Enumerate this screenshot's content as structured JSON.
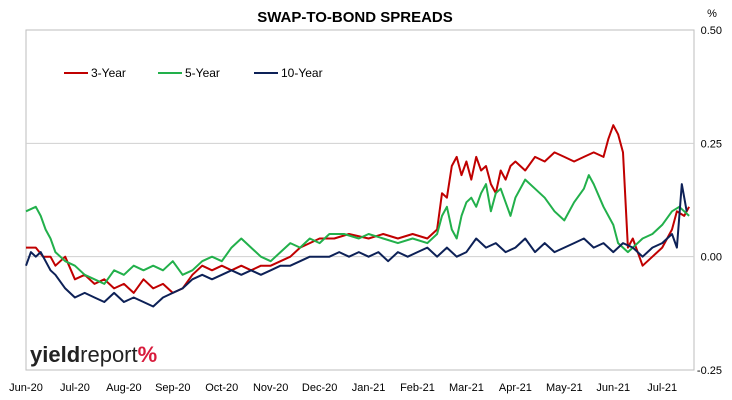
{
  "chart_data": {
    "type": "line",
    "title": "SWAP-TO-BOND SPREADS",
    "y_unit_label": "%",
    "ylim": [
      -0.25,
      0.5
    ],
    "y_ticks": [
      {
        "value": 0.5,
        "label": "0.50"
      },
      {
        "value": 0.25,
        "label": "0.25"
      },
      {
        "value": 0.0,
        "label": "0.00"
      },
      {
        "value": -0.25,
        "label": "-0.25"
      }
    ],
    "x_tick_labels": [
      "Jun-20",
      "Jul-20",
      "Aug-20",
      "Sep-20",
      "Oct-20",
      "Nov-20",
      "Dec-20",
      "Jan-21",
      "Feb-21",
      "Mar-21",
      "Apr-21",
      "May-21",
      "Jun-21",
      "Jul-21"
    ],
    "xlim": [
      0,
      13.65
    ],
    "grid": "horizontal",
    "legend_position": "top-left",
    "colors": {
      "3-Year": "#c00000",
      "5-Year": "#22b04b",
      "10-Year": "#0d2157"
    },
    "series": [
      {
        "name": "3-Year",
        "color": "#c00000",
        "points": [
          [
            0,
            0.02
          ],
          [
            0.2,
            0.02
          ],
          [
            0.35,
            0.0
          ],
          [
            0.5,
            0.0
          ],
          [
            0.6,
            -0.02
          ],
          [
            0.8,
            0.0
          ],
          [
            1.0,
            -0.05
          ],
          [
            1.2,
            -0.04
          ],
          [
            1.4,
            -0.06
          ],
          [
            1.6,
            -0.05
          ],
          [
            1.8,
            -0.07
          ],
          [
            2.0,
            -0.06
          ],
          [
            2.2,
            -0.08
          ],
          [
            2.4,
            -0.05
          ],
          [
            2.6,
            -0.07
          ],
          [
            2.8,
            -0.06
          ],
          [
            3.0,
            -0.08
          ],
          [
            3.2,
            -0.07
          ],
          [
            3.4,
            -0.04
          ],
          [
            3.6,
            -0.02
          ],
          [
            3.8,
            -0.03
          ],
          [
            4.0,
            -0.02
          ],
          [
            4.2,
            -0.03
          ],
          [
            4.4,
            -0.02
          ],
          [
            4.6,
            -0.03
          ],
          [
            4.8,
            -0.02
          ],
          [
            5.0,
            -0.02
          ],
          [
            5.2,
            -0.01
          ],
          [
            5.4,
            0.0
          ],
          [
            5.6,
            0.02
          ],
          [
            5.8,
            0.03
          ],
          [
            6.0,
            0.04
          ],
          [
            6.3,
            0.04
          ],
          [
            6.6,
            0.05
          ],
          [
            7.0,
            0.04
          ],
          [
            7.3,
            0.05
          ],
          [
            7.6,
            0.04
          ],
          [
            7.9,
            0.05
          ],
          [
            8.2,
            0.04
          ],
          [
            8.4,
            0.06
          ],
          [
            8.5,
            0.14
          ],
          [
            8.6,
            0.13
          ],
          [
            8.7,
            0.2
          ],
          [
            8.8,
            0.22
          ],
          [
            8.9,
            0.18
          ],
          [
            9.0,
            0.21
          ],
          [
            9.1,
            0.17
          ],
          [
            9.2,
            0.22
          ],
          [
            9.3,
            0.19
          ],
          [
            9.4,
            0.2
          ],
          [
            9.5,
            0.16
          ],
          [
            9.6,
            0.14
          ],
          [
            9.7,
            0.19
          ],
          [
            9.8,
            0.17
          ],
          [
            9.9,
            0.2
          ],
          [
            10.0,
            0.21
          ],
          [
            10.2,
            0.19
          ],
          [
            10.4,
            0.22
          ],
          [
            10.6,
            0.21
          ],
          [
            10.8,
            0.23
          ],
          [
            11.0,
            0.22
          ],
          [
            11.2,
            0.21
          ],
          [
            11.4,
            0.22
          ],
          [
            11.6,
            0.23
          ],
          [
            11.8,
            0.22
          ],
          [
            11.9,
            0.26
          ],
          [
            12.0,
            0.29
          ],
          [
            12.1,
            0.27
          ],
          [
            12.2,
            0.23
          ],
          [
            12.3,
            0.02
          ],
          [
            12.4,
            0.04
          ],
          [
            12.6,
            -0.02
          ],
          [
            12.8,
            0.0
          ],
          [
            13.0,
            0.02
          ],
          [
            13.2,
            0.06
          ],
          [
            13.3,
            0.1
          ],
          [
            13.45,
            0.09
          ],
          [
            13.55,
            0.11
          ]
        ]
      },
      {
        "name": "5-Year",
        "color": "#22b04b",
        "points": [
          [
            0,
            0.1
          ],
          [
            0.2,
            0.11
          ],
          [
            0.3,
            0.09
          ],
          [
            0.4,
            0.06
          ],
          [
            0.5,
            0.04
          ],
          [
            0.6,
            0.01
          ],
          [
            0.8,
            -0.01
          ],
          [
            1.0,
            -0.02
          ],
          [
            1.2,
            -0.04
          ],
          [
            1.4,
            -0.05
          ],
          [
            1.6,
            -0.06
          ],
          [
            1.8,
            -0.03
          ],
          [
            2.0,
            -0.04
          ],
          [
            2.2,
            -0.02
          ],
          [
            2.4,
            -0.03
          ],
          [
            2.6,
            -0.02
          ],
          [
            2.8,
            -0.03
          ],
          [
            3.0,
            -0.01
          ],
          [
            3.2,
            -0.04
          ],
          [
            3.4,
            -0.03
          ],
          [
            3.6,
            -0.01
          ],
          [
            3.8,
            0.0
          ],
          [
            4.0,
            -0.01
          ],
          [
            4.2,
            0.02
          ],
          [
            4.4,
            0.04
          ],
          [
            4.6,
            0.02
          ],
          [
            4.8,
            0.0
          ],
          [
            5.0,
            -0.01
          ],
          [
            5.2,
            0.01
          ],
          [
            5.4,
            0.03
          ],
          [
            5.6,
            0.02
          ],
          [
            5.8,
            0.04
          ],
          [
            6.0,
            0.03
          ],
          [
            6.2,
            0.05
          ],
          [
            6.5,
            0.05
          ],
          [
            6.8,
            0.04
          ],
          [
            7.0,
            0.05
          ],
          [
            7.3,
            0.04
          ],
          [
            7.6,
            0.03
          ],
          [
            7.9,
            0.04
          ],
          [
            8.2,
            0.03
          ],
          [
            8.4,
            0.05
          ],
          [
            8.5,
            0.09
          ],
          [
            8.6,
            0.11
          ],
          [
            8.7,
            0.06
          ],
          [
            8.8,
            0.04
          ],
          [
            8.9,
            0.09
          ],
          [
            9.0,
            0.12
          ],
          [
            9.1,
            0.13
          ],
          [
            9.2,
            0.11
          ],
          [
            9.3,
            0.14
          ],
          [
            9.4,
            0.16
          ],
          [
            9.5,
            0.1
          ],
          [
            9.6,
            0.14
          ],
          [
            9.7,
            0.15
          ],
          [
            9.8,
            0.12
          ],
          [
            9.9,
            0.09
          ],
          [
            10.0,
            0.13
          ],
          [
            10.2,
            0.17
          ],
          [
            10.4,
            0.15
          ],
          [
            10.6,
            0.13
          ],
          [
            10.8,
            0.1
          ],
          [
            11.0,
            0.08
          ],
          [
            11.2,
            0.12
          ],
          [
            11.4,
            0.15
          ],
          [
            11.5,
            0.18
          ],
          [
            11.6,
            0.16
          ],
          [
            11.8,
            0.11
          ],
          [
            12.0,
            0.07
          ],
          [
            12.1,
            0.03
          ],
          [
            12.2,
            0.02
          ],
          [
            12.3,
            0.01
          ],
          [
            12.4,
            0.02
          ],
          [
            12.6,
            0.04
          ],
          [
            12.8,
            0.05
          ],
          [
            13.0,
            0.07
          ],
          [
            13.2,
            0.1
          ],
          [
            13.35,
            0.11
          ],
          [
            13.45,
            0.1
          ],
          [
            13.55,
            0.09
          ]
        ]
      },
      {
        "name": "10-Year",
        "color": "#0d2157",
        "points": [
          [
            0,
            -0.02
          ],
          [
            0.1,
            0.01
          ],
          [
            0.2,
            0.0
          ],
          [
            0.3,
            0.01
          ],
          [
            0.4,
            -0.01
          ],
          [
            0.5,
            -0.03
          ],
          [
            0.6,
            -0.04
          ],
          [
            0.8,
            -0.07
          ],
          [
            1.0,
            -0.09
          ],
          [
            1.2,
            -0.08
          ],
          [
            1.4,
            -0.09
          ],
          [
            1.6,
            -0.1
          ],
          [
            1.8,
            -0.08
          ],
          [
            2.0,
            -0.1
          ],
          [
            2.2,
            -0.09
          ],
          [
            2.4,
            -0.1
          ],
          [
            2.6,
            -0.11
          ],
          [
            2.8,
            -0.09
          ],
          [
            3.0,
            -0.08
          ],
          [
            3.2,
            -0.07
          ],
          [
            3.4,
            -0.05
          ],
          [
            3.6,
            -0.04
          ],
          [
            3.8,
            -0.05
          ],
          [
            4.0,
            -0.04
          ],
          [
            4.2,
            -0.03
          ],
          [
            4.4,
            -0.04
          ],
          [
            4.6,
            -0.03
          ],
          [
            4.8,
            -0.04
          ],
          [
            5.0,
            -0.03
          ],
          [
            5.2,
            -0.02
          ],
          [
            5.4,
            -0.02
          ],
          [
            5.6,
            -0.01
          ],
          [
            5.8,
            0.0
          ],
          [
            6.0,
            0.0
          ],
          [
            6.2,
            0.0
          ],
          [
            6.4,
            0.01
          ],
          [
            6.6,
            0.0
          ],
          [
            6.8,
            0.01
          ],
          [
            7.0,
            0.0
          ],
          [
            7.2,
            0.01
          ],
          [
            7.4,
            -0.01
          ],
          [
            7.6,
            0.01
          ],
          [
            7.8,
            0.0
          ],
          [
            8.0,
            0.01
          ],
          [
            8.2,
            0.02
          ],
          [
            8.4,
            0.0
          ],
          [
            8.6,
            0.02
          ],
          [
            8.8,
            0.0
          ],
          [
            9.0,
            0.01
          ],
          [
            9.2,
            0.04
          ],
          [
            9.4,
            0.02
          ],
          [
            9.6,
            0.03
          ],
          [
            9.8,
            0.01
          ],
          [
            10.0,
            0.02
          ],
          [
            10.2,
            0.04
          ],
          [
            10.4,
            0.01
          ],
          [
            10.6,
            0.03
          ],
          [
            10.8,
            0.01
          ],
          [
            11.0,
            0.02
          ],
          [
            11.2,
            0.03
          ],
          [
            11.4,
            0.04
          ],
          [
            11.6,
            0.02
          ],
          [
            11.8,
            0.03
          ],
          [
            12.0,
            0.01
          ],
          [
            12.2,
            0.03
          ],
          [
            12.4,
            0.02
          ],
          [
            12.6,
            0.0
          ],
          [
            12.8,
            0.02
          ],
          [
            13.0,
            0.03
          ],
          [
            13.2,
            0.05
          ],
          [
            13.3,
            0.02
          ],
          [
            13.4,
            0.16
          ],
          [
            13.5,
            0.1
          ]
        ]
      }
    ]
  },
  "branding": {
    "part1": "yield",
    "part2": "report",
    "part3": "%"
  }
}
